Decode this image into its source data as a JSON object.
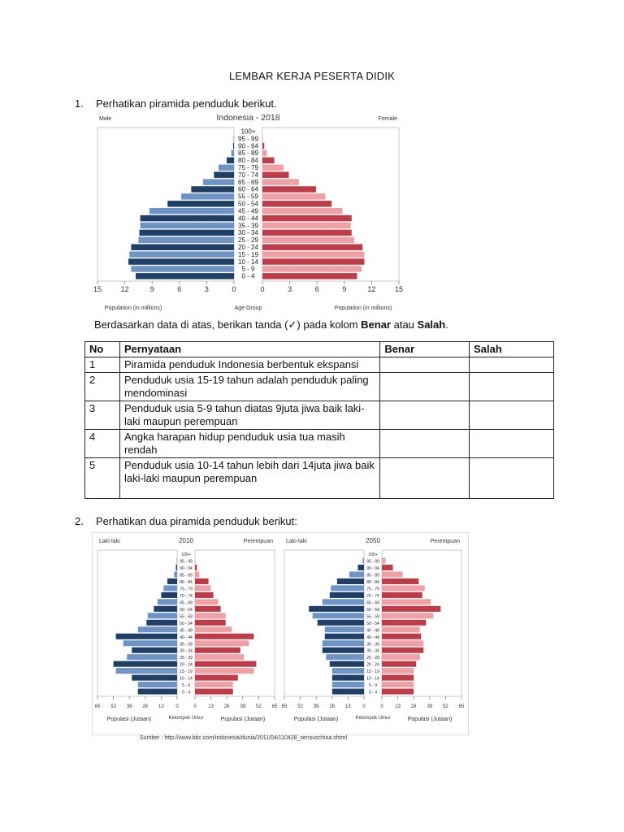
{
  "document": {
    "title": "LEMBAR KERJA PESERTA DIDIK",
    "q1": {
      "number": "1.",
      "text": "Perhatikan piramida penduduk berikut."
    },
    "instruction": {
      "before": "Berdasarkan data di atas, berikan tanda (✓) pada kolom ",
      "benar": "Benar",
      "between": " atau ",
      "salah": "Salah",
      "after": "."
    },
    "table": {
      "headers": [
        "No",
        "Pernyataan",
        "Benar",
        "Salah"
      ],
      "rows": [
        {
          "no": "1",
          "text": "Piramida penduduk Indonesia berbentuk ekspansi"
        },
        {
          "no": "2",
          "text": "Penduduk usia 15-19 tahun adalah penduduk paling mendominasi"
        },
        {
          "no": "3",
          "text": "Penduduk usia 5-9 tahun diatas 9juta jiwa baik laki-laki maupun perempuan"
        },
        {
          "no": "4",
          "text": "Angka harapan hidup penduduk usia tua masih rendah"
        },
        {
          "no": "5",
          "text": "Penduduk usia 10-14 tahun lebih dari 14juta jiwa baik laki-laki maupun perempuan"
        }
      ]
    },
    "q2": {
      "number": "2.",
      "text": "Perhatikan dua piramida penduduk berikut:"
    },
    "source": "Sumber : http://www.bbc.com/indonesia/dunia/2011/04/110428_sensuschina.shtml"
  },
  "chart_data": [
    {
      "type": "bar",
      "subtype": "population-pyramid",
      "title": "Indonesia - 2018",
      "left_label": "Male",
      "right_label": "Female",
      "xlabel_left": "Population (in millions)",
      "xlabel_center": "Age Group",
      "xlabel_right": "Population (in millions)",
      "xlim": [
        0,
        15
      ],
      "xticks": [
        "15",
        "12",
        "9",
        "6",
        "3",
        "0"
      ],
      "colors": {
        "male_dark": "#1f3f66",
        "male_light": "#6f93c4",
        "female_dark": "#bf3b47",
        "female_light": "#eea0a5"
      },
      "categories": [
        "100+",
        "95 - 99",
        "90 - 94",
        "85 - 89",
        "80 - 84",
        "75 - 79",
        "70 - 74",
        "65 - 69",
        "60 - 64",
        "55 - 59",
        "50 - 54",
        "45 - 49",
        "40 - 44",
        "35 - 39",
        "30 - 34",
        "25 - 29",
        "20 - 24",
        "15 - 19",
        "10 - 14",
        "5 - 9",
        "0 - 4"
      ],
      "series": [
        {
          "name": "Male",
          "values": [
            0,
            0.05,
            0.1,
            0.3,
            0.8,
            1.7,
            2.2,
            3.4,
            4.7,
            5.8,
            7.3,
            9.3,
            10.3,
            10.3,
            10.4,
            10.5,
            11.3,
            11.5,
            11.6,
            11.3,
            10.8
          ]
        },
        {
          "name": "Female",
          "values": [
            0,
            0.05,
            0.2,
            0.5,
            1.3,
            2.3,
            2.9,
            4.0,
            5.9,
            6.9,
            7.6,
            8.8,
            9.8,
            9.7,
            9.8,
            10.1,
            11.0,
            11.2,
            11.2,
            10.9,
            10.4
          ]
        }
      ]
    },
    {
      "type": "bar",
      "subtype": "population-pyramid",
      "title": "2010",
      "left_label": "Laki-laki",
      "right_label": "Perempuan",
      "xlabel_left": "Populasi (Jutaan)",
      "xlabel_center": "Kelompok Umur",
      "xlabel_right": "Populasi (Jutaan)",
      "xlim": [
        0,
        65
      ],
      "xticks": [
        "65",
        "52",
        "39",
        "26",
        "13",
        "0"
      ],
      "colors": {
        "male_dark": "#1f3f66",
        "male_light": "#6f93c4",
        "female_dark": "#bf3b47",
        "female_light": "#eea0a5"
      },
      "categories": [
        "100+",
        "95 - 99",
        "90 - 94",
        "85 - 89",
        "80 - 84",
        "75 - 79",
        "70 - 74",
        "65 - 69",
        "60 - 64",
        "55 - 59",
        "50 - 54",
        "45 - 49",
        "40 - 44",
        "35 - 39",
        "30 - 34",
        "25 - 29",
        "20 - 24",
        "15 - 19",
        "10 - 14",
        "5 - 9",
        "0 - 4"
      ],
      "series": [
        {
          "name": "Laki-laki",
          "values": [
            0,
            0.3,
            1,
            2.5,
            8,
            11,
            13,
            16,
            19,
            24,
            25,
            32,
            50,
            44,
            37,
            41,
            52,
            50,
            37,
            32,
            32
          ]
        },
        {
          "name": "Perempuan",
          "values": [
            0,
            0.3,
            1.5,
            3.5,
            11,
            13,
            15,
            19,
            21,
            25,
            25,
            30,
            48,
            44,
            37,
            40,
            50,
            48,
            35,
            31,
            31
          ]
        }
      ]
    },
    {
      "type": "bar",
      "subtype": "population-pyramid",
      "title": "2050",
      "left_label": "Laki-laki",
      "right_label": "Perempuan",
      "xlabel_left": "Populasi (Jutaan)",
      "xlabel_center": "Kelompok Umur",
      "xlabel_right": "Populasi (Jutaan)",
      "xlim": [
        0,
        65
      ],
      "xticks": [
        "65",
        "52",
        "39",
        "26",
        "13",
        "0"
      ],
      "colors": {
        "male_dark": "#1f3f66",
        "male_light": "#6f93c4",
        "female_dark": "#bf3b47",
        "female_light": "#eea0a5"
      },
      "categories": [
        "100+",
        "95 - 99",
        "90 - 94",
        "85 - 89",
        "80 - 84",
        "75 - 79",
        "70 - 74",
        "65 - 69",
        "60 - 64",
        "55 - 59",
        "50 - 54",
        "45 - 49",
        "40 - 44",
        "35 - 39",
        "30 - 34",
        "25 - 29",
        "20 - 24",
        "15 - 19",
        "10 - 14",
        "5 - 9",
        "0 - 4"
      ],
      "series": [
        {
          "name": "Laki-laki",
          "values": [
            0,
            1,
            5,
            12,
            22,
            27,
            28,
            34,
            45,
            42,
            38,
            32,
            32,
            34,
            34,
            31,
            28,
            26,
            26,
            26,
            26
          ]
        },
        {
          "name": "Perempuan",
          "values": [
            0,
            3,
            9,
            17,
            30,
            35,
            33,
            40,
            48,
            42,
            36,
            31,
            32,
            34,
            34,
            31,
            28,
            26,
            26,
            26,
            26
          ]
        }
      ]
    }
  ]
}
